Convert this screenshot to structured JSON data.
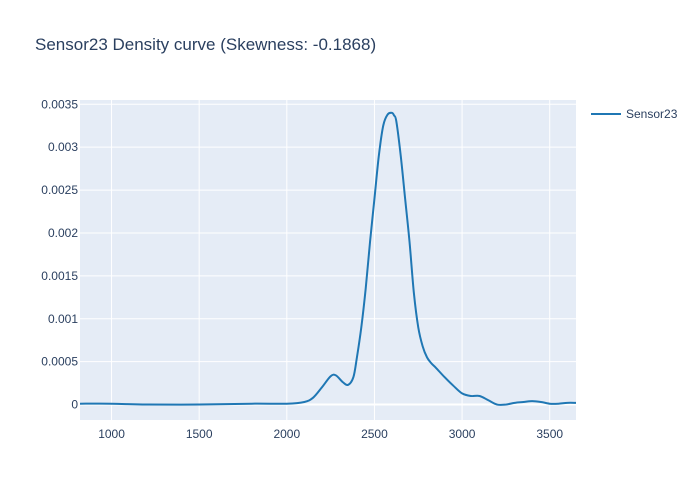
{
  "chart_data": {
    "type": "line",
    "title": "Sensor23 Density curve (Skewness: -0.1868)",
    "xlabel": "",
    "ylabel": "",
    "xlim": [
      820,
      3650
    ],
    "ylim": [
      -0.00018,
      0.00355
    ],
    "x_ticks": [
      1000,
      1500,
      2000,
      2500,
      3000,
      3500
    ],
    "x_tick_labels": [
      "1000",
      "1500",
      "2000",
      "2500",
      "3000",
      "3500"
    ],
    "y_ticks": [
      0,
      0.0005,
      0.001,
      0.0015,
      0.002,
      0.0025,
      0.003,
      0.0035
    ],
    "y_tick_labels": [
      "0",
      "0.0005",
      "0.001",
      "0.0015",
      "0.002",
      "0.0025",
      "0.003",
      "0.0035"
    ],
    "grid": true,
    "legend_position": "top-right",
    "colors": {
      "plot_background": "#e5ecf6",
      "grid": "#ffffff",
      "series": "#1f77b4",
      "text": "#2a3f5f"
    },
    "series": [
      {
        "name": "Sensor23",
        "color": "#1f77b4",
        "x": [
          820,
          1000,
          1200,
          1500,
          1800,
          2000,
          2100,
          2150,
          2200,
          2250,
          2280,
          2320,
          2350,
          2380,
          2400,
          2425,
          2450,
          2475,
          2500,
          2525,
          2550,
          2575,
          2600,
          2612,
          2625,
          2650,
          2675,
          2700,
          2725,
          2750,
          2775,
          2800,
          2825,
          2850,
          2900,
          2950,
          3000,
          3050,
          3100,
          3150,
          3200,
          3250,
          3300,
          3350,
          3400,
          3450,
          3500,
          3550,
          3600,
          3650
        ],
        "y": [
          1e-05,
          1e-05,
          0.0,
          0.0,
          1e-05,
          1e-05,
          3e-05,
          8e-05,
          0.0002,
          0.00033,
          0.00034,
          0.00026,
          0.00023,
          0.00032,
          0.00055,
          0.0009,
          0.00135,
          0.0019,
          0.0024,
          0.0029,
          0.00325,
          0.00338,
          0.0034,
          0.00337,
          0.0033,
          0.0029,
          0.0024,
          0.0019,
          0.0013,
          0.0009,
          0.00068,
          0.00055,
          0.00048,
          0.00043,
          0.00032,
          0.00022,
          0.00013,
          0.0001,
          0.0001,
          5e-05,
          0.0,
          0.0,
          2e-05,
          3e-05,
          4e-05,
          3e-05,
          1e-05,
          1e-05,
          2e-05,
          2e-05
        ]
      }
    ]
  }
}
